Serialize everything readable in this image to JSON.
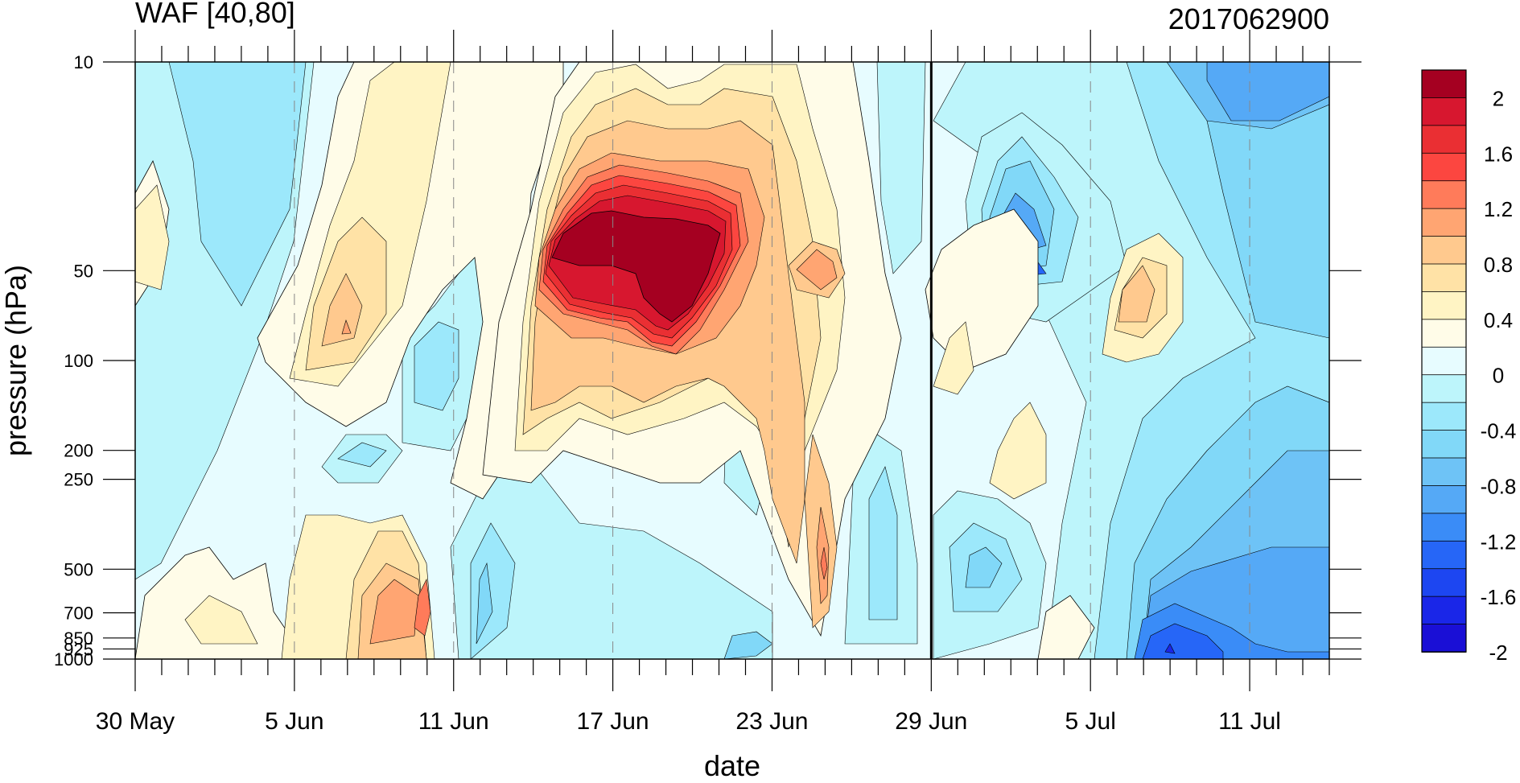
{
  "chart_data": {
    "type": "heatmap",
    "title_left": "WAF [40,80]",
    "title_right": "2017062900",
    "xlabel": "date",
    "ylabel": "pressure (hPa)",
    "x_tick_labels": [
      "30 May",
      "5 Jun",
      "11 Jun",
      "17 Jun",
      "23 Jun",
      "29 Jun",
      "5 Jul",
      "11 Jul"
    ],
    "x_tick_days": [
      0,
      6,
      12,
      18,
      24,
      30,
      36,
      42
    ],
    "x_range_days": [
      0,
      45
    ],
    "y_tick_labels": [
      "10",
      "50",
      "100",
      "200",
      "250",
      "500",
      "700",
      "850",
      "925",
      "1000"
    ],
    "y_tick_values": [
      10,
      50,
      100,
      200,
      250,
      500,
      700,
      850,
      925,
      1000
    ],
    "y_range": [
      10,
      1000
    ],
    "y_scale": "log",
    "y_inverted": true,
    "vertical_marker_label": "29 Jun",
    "colorbar": {
      "labels": [
        "2",
        "1.6",
        "1.2",
        "0.8",
        "0.4",
        "0",
        "-0.4",
        "-0.8",
        "-1.2",
        "-1.6",
        "-2"
      ],
      "colors": [
        "#a50021",
        "#d7172f",
        "#ea2f33",
        "#fc4640",
        "#ff7b5a",
        "#ffa572",
        "#ffc98e",
        "#ffe2a6",
        "#fff4c4",
        "#fffce8",
        "#e7fcff",
        "#bdf5fb",
        "#9ce8fb",
        "#81d8f8",
        "#6ec3f6",
        "#55a9f6",
        "#3a8cf7",
        "#2666f7",
        "#1d46f1",
        "#1a26e8",
        "#1a0fd6"
      ]
    },
    "grid": "dashed vertical at x ticks"
  }
}
